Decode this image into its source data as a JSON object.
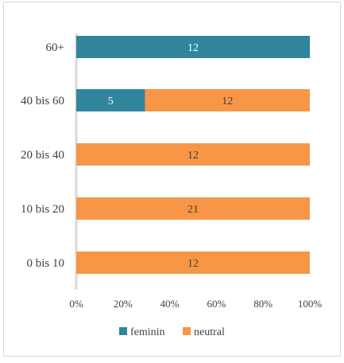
{
  "chart_data": {
    "type": "bar",
    "orientation": "horizontal",
    "stacked": "percent",
    "categories": [
      "60+",
      "40 bis 60",
      "20 bis 40",
      "10 bis 20",
      "0 bis 10"
    ],
    "series": [
      {
        "name": "feminin",
        "values": [
          12,
          5,
          0,
          0,
          0
        ],
        "color": "#31859c",
        "label_color": "#ffffff"
      },
      {
        "name": "neutral",
        "values": [
          0,
          12,
          12,
          21,
          12
        ],
        "color": "#f79646",
        "label_color": "#404040"
      }
    ],
    "x_ticks": [
      "0%",
      "20%",
      "40%",
      "60%",
      "80%",
      "100%"
    ],
    "xlim": [
      0,
      100
    ],
    "grid": false,
    "legend_position": "bottom"
  }
}
